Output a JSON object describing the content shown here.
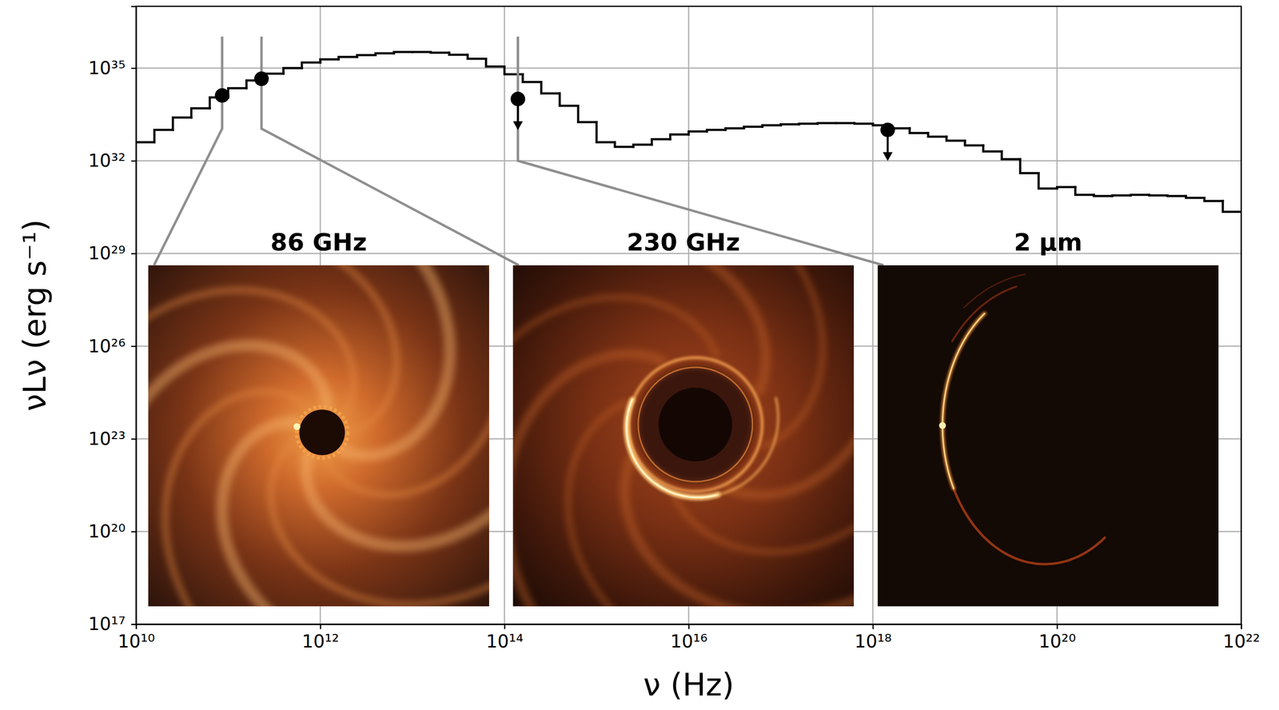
{
  "chart_data": {
    "type": "step",
    "x_label": "ν (Hz)",
    "y_label": "νLν (erg s⁻¹)",
    "log": true,
    "grid": true,
    "xlim": [
      10000000000.0,
      1e+22
    ],
    "ylim": [
      1e+17,
      1e+37
    ],
    "xticks": [
      {
        "value": 10000000000.0,
        "label": "10¹⁰"
      },
      {
        "value": 1000000000000.0,
        "label": "10¹²"
      },
      {
        "value": 100000000000000.0,
        "label": "10¹⁴"
      },
      {
        "value": 1e+16,
        "label": "10¹⁶"
      },
      {
        "value": 1e+18,
        "label": "10¹⁸"
      },
      {
        "value": 1e+20,
        "label": "10²⁰"
      },
      {
        "value": 1e+22,
        "label": "10²²"
      }
    ],
    "yticks": [
      {
        "value": 1e+17,
        "label": "10¹⁷"
      },
      {
        "value": 1e+20,
        "label": "10²⁰"
      },
      {
        "value": 1e+23,
        "label": "10²³"
      },
      {
        "value": 1e+26,
        "label": "10²⁶"
      },
      {
        "value": 1e+29,
        "label": "10²⁹"
      },
      {
        "value": 1e+32,
        "label": "10³²"
      },
      {
        "value": 1e+35,
        "label": "10³⁵"
      }
    ],
    "annotations": [
      "86 GHz",
      "230 GHz",
      "2 μm"
    ],
    "series": [
      {
        "type": "step",
        "color": "#000000",
        "bins": [
          10000000000.0,
          15800000000.0,
          25100000000.0,
          39800000000.0,
          63100000000.0,
          100000000000.0,
          158000000000.0,
          251000000000.0,
          398000000000.0,
          631000000000.0,
          1000000000000.0,
          1580000000000.0,
          2510000000000.0,
          3980000000000.0,
          6310000000000.0,
          10000000000000.0,
          15800000000000.0,
          25100000000000.0,
          39800000000000.0,
          63100000000000.0,
          100000000000000.0,
          158000000000000.0,
          251000000000000.0,
          398000000000000.0,
          631000000000000.0,
          1000000000000000.0,
          1580000000000000.0,
          2510000000000000.0,
          3980000000000000.0,
          6310000000000000.0,
          1e+16,
          1.58e+16,
          2.51e+16,
          3.98e+16,
          6.31e+16,
          1e+17,
          1.58e+17,
          2.51e+17,
          3.98e+17,
          6.31e+17,
          1e+18,
          1.58e+18,
          2.51e+18,
          3.98e+18,
          6.31e+18,
          1e+19,
          1.58e+19,
          2.51e+19,
          3.98e+19,
          6.31e+19,
          1e+20,
          1.58e+20,
          2.51e+20,
          3.98e+20,
          6.31e+20,
          1e+21,
          1.58e+21,
          2.51e+21,
          3.98e+21,
          6.31e+21,
          1e+22
        ],
        "values": [
          3.98e+32,
          1e+33,
          2.51e+33,
          5.01e+33,
          1.12e+34,
          2.24e+34,
          3.98e+34,
          6.61e+34,
          1e+35,
          1.51e+35,
          1.91e+35,
          2.29e+35,
          2.63e+35,
          3.02e+35,
          3.31e+35,
          3.31e+35,
          3.16e+35,
          2.69e+35,
          2e+35,
          1.12e+35,
          6.31e+34,
          3.55e+34,
          1.51e+34,
          6.03e+33,
          1.78e+33,
          3.98e+32,
          2.82e+32,
          3.31e+32,
          5.01e+32,
          7.08e+32,
          8.91e+32,
          1e+33,
          1.12e+33,
          1.26e+33,
          1.41e+33,
          1.51e+33,
          1.58e+33,
          1.66e+33,
          1.66e+33,
          1.58e+33,
          1.41e+33,
          1.12e+33,
          7.94e+32,
          6.03e+32,
          4.47e+32,
          3.16e+32,
          2e+32,
          1.12e+32,
          3.98e+31,
          1.26e+31,
          1.41e+31,
          7.94e+30,
          7.24e+30,
          7.59e+30,
          7.94e+30,
          7.59e+30,
          7.24e+30,
          6.31e+30,
          5.01e+30,
          2.24e+30
        ]
      },
      {
        "type": "scatter",
        "marker": "circle",
        "color": "#000000",
        "x": [
          86000000000.0,
          230000000000.0
        ],
        "values": [
          1.3e+34,
          4.5e+34
        ]
      },
      {
        "type": "scatter",
        "marker": "upper_limit",
        "color": "#000000",
        "x": [
          140000000000000.0,
          1.45e+18
        ],
        "values": [
          1e+34,
          1e+33
        ]
      }
    ]
  }
}
